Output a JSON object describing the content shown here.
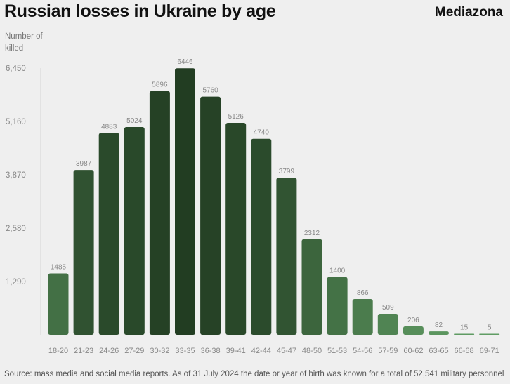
{
  "title": "Russian losses in Ukraine by age",
  "brand": "Mediazona",
  "source": "Source: mass media and social media reports. As of 31 July 2024 the date or year of birth was known for a total of 52,541 military personnel",
  "chart_data": {
    "type": "bar",
    "title": "Russian losses in Ukraine by age",
    "xlabel": "",
    "ylabel": "Number of killed",
    "ylim": [
      0,
      6450
    ],
    "yticks": [
      "1,290",
      "2,580",
      "3,870",
      "5,160",
      "6,450"
    ],
    "ytick_values": [
      1290,
      2580,
      3870,
      5160,
      6450
    ],
    "grid": false,
    "categories": [
      "18-20",
      "21-23",
      "24-26",
      "27-29",
      "30-32",
      "33-35",
      "36-38",
      "39-41",
      "42-44",
      "45-47",
      "48-50",
      "51-53",
      "54-56",
      "57-59",
      "60-62",
      "63-65",
      "66-68",
      "69-71"
    ],
    "values": [
      1485,
      3987,
      4883,
      5024,
      5896,
      6446,
      5760,
      5126,
      4740,
      3799,
      2312,
      1400,
      866,
      509,
      206,
      82,
      15,
      5
    ],
    "colors": {
      "high": "#223d22",
      "low": "#62a066",
      "label": "#888888"
    }
  }
}
